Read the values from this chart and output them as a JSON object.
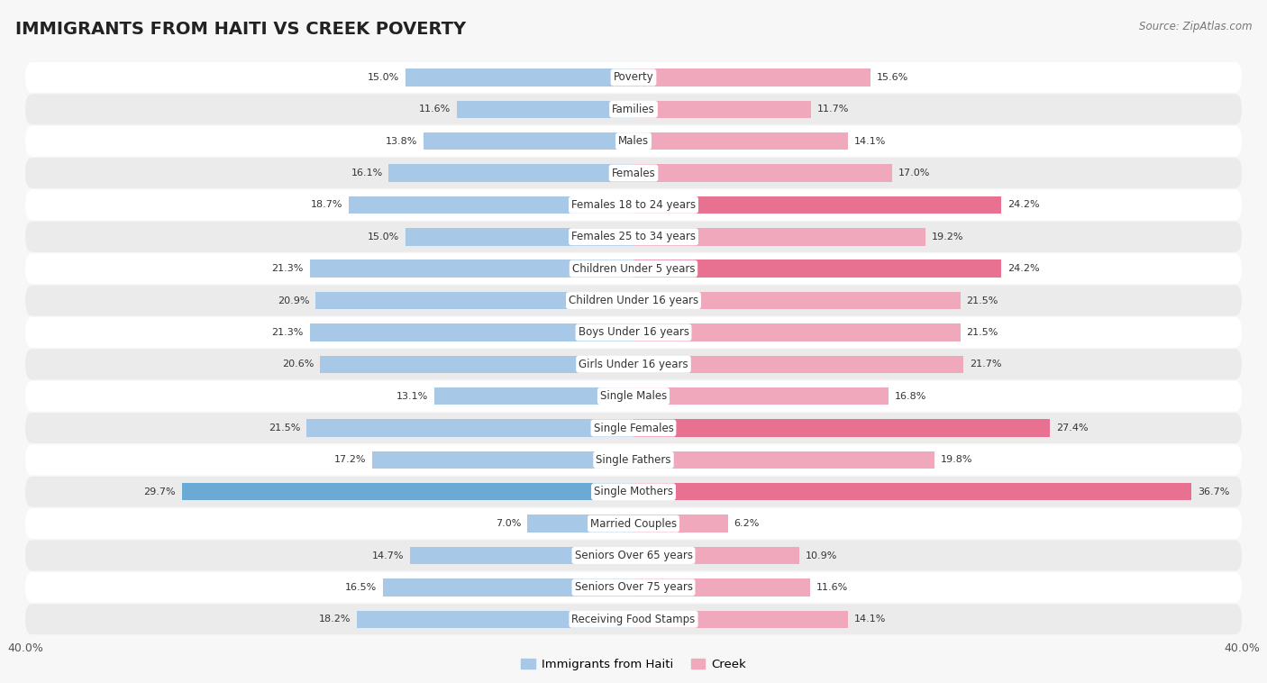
{
  "title": "IMMIGRANTS FROM HAITI VS CREEK POVERTY",
  "source": "Source: ZipAtlas.com",
  "categories": [
    "Poverty",
    "Families",
    "Males",
    "Females",
    "Females 18 to 24 years",
    "Females 25 to 34 years",
    "Children Under 5 years",
    "Children Under 16 years",
    "Boys Under 16 years",
    "Girls Under 16 years",
    "Single Males",
    "Single Females",
    "Single Fathers",
    "Single Mothers",
    "Married Couples",
    "Seniors Over 65 years",
    "Seniors Over 75 years",
    "Receiving Food Stamps"
  ],
  "haiti_values": [
    15.0,
    11.6,
    13.8,
    16.1,
    18.7,
    15.0,
    21.3,
    20.9,
    21.3,
    20.6,
    13.1,
    21.5,
    17.2,
    29.7,
    7.0,
    14.7,
    16.5,
    18.2
  ],
  "creek_values": [
    15.6,
    11.7,
    14.1,
    17.0,
    24.2,
    19.2,
    24.2,
    21.5,
    21.5,
    21.7,
    16.8,
    27.4,
    19.8,
    36.7,
    6.2,
    10.9,
    11.6,
    14.1
  ],
  "haiti_color": "#a8c8e8",
  "creek_color": "#f0a8bc",
  "haiti_highlight_color": "#6aaad4",
  "creek_highlight_color": "#e87090",
  "background_color": "#f7f7f7",
  "row_light_color": "#ffffff",
  "row_dark_color": "#ebebeb",
  "max_value": 40.0,
  "legend_haiti": "Immigrants from Haiti",
  "legend_creek": "Creek",
  "title_fontsize": 14,
  "label_fontsize": 8.5,
  "value_fontsize": 8,
  "haiti_highlight_indices": [
    13
  ],
  "creek_highlight_indices": [
    4,
    6,
    11,
    13
  ]
}
